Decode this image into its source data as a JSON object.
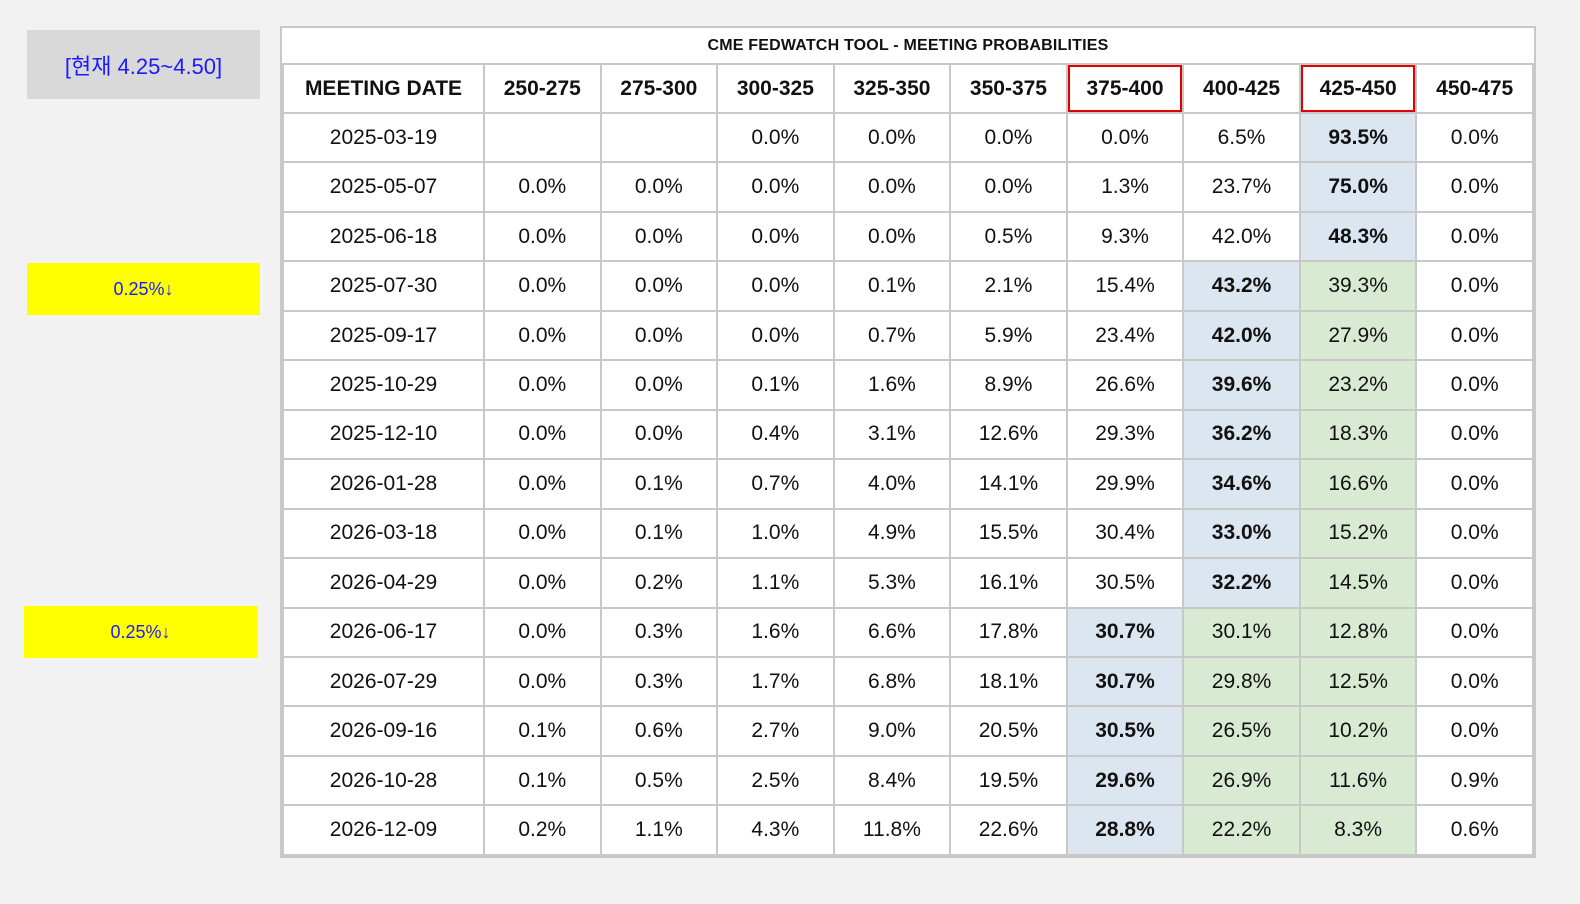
{
  "side": {
    "current_label": "[현재 4.25~4.50]",
    "note_1": "0.25%↓",
    "note_2": "0.25%↓"
  },
  "table": {
    "title": "CME FEDWATCH TOOL - MEETING PROBABILITIES",
    "headers": [
      "MEETING DATE",
      "250-275",
      "275-300",
      "300-325",
      "325-350",
      "350-375",
      "375-400",
      "400-425",
      "425-450",
      "450-475"
    ],
    "outlined_headers": [
      "375-400",
      "425-450"
    ],
    "rows": [
      {
        "date": "2025-03-19",
        "values": [
          "",
          "",
          "0.0%",
          "0.0%",
          "0.0%",
          "0.0%",
          "6.5%",
          "93.5%",
          "0.0%"
        ],
        "highlight_blue": 7,
        "highlight_green": []
      },
      {
        "date": "2025-05-07",
        "values": [
          "0.0%",
          "0.0%",
          "0.0%",
          "0.0%",
          "0.0%",
          "1.3%",
          "23.7%",
          "75.0%",
          "0.0%"
        ],
        "highlight_blue": 7,
        "highlight_green": []
      },
      {
        "date": "2025-06-18",
        "values": [
          "0.0%",
          "0.0%",
          "0.0%",
          "0.0%",
          "0.5%",
          "9.3%",
          "42.0%",
          "48.3%",
          "0.0%"
        ],
        "highlight_blue": 7,
        "highlight_green": []
      },
      {
        "date": "2025-07-30",
        "values": [
          "0.0%",
          "0.0%",
          "0.0%",
          "0.1%",
          "2.1%",
          "15.4%",
          "43.2%",
          "39.3%",
          "0.0%"
        ],
        "highlight_blue": 6,
        "highlight_green": [
          7
        ]
      },
      {
        "date": "2025-09-17",
        "values": [
          "0.0%",
          "0.0%",
          "0.0%",
          "0.7%",
          "5.9%",
          "23.4%",
          "42.0%",
          "27.9%",
          "0.0%"
        ],
        "highlight_blue": 6,
        "highlight_green": [
          7
        ]
      },
      {
        "date": "2025-10-29",
        "values": [
          "0.0%",
          "0.0%",
          "0.1%",
          "1.6%",
          "8.9%",
          "26.6%",
          "39.6%",
          "23.2%",
          "0.0%"
        ],
        "highlight_blue": 6,
        "highlight_green": [
          7
        ]
      },
      {
        "date": "2025-12-10",
        "values": [
          "0.0%",
          "0.0%",
          "0.4%",
          "3.1%",
          "12.6%",
          "29.3%",
          "36.2%",
          "18.3%",
          "0.0%"
        ],
        "highlight_blue": 6,
        "highlight_green": [
          7
        ]
      },
      {
        "date": "2026-01-28",
        "values": [
          "0.0%",
          "0.1%",
          "0.7%",
          "4.0%",
          "14.1%",
          "29.9%",
          "34.6%",
          "16.6%",
          "0.0%"
        ],
        "highlight_blue": 6,
        "highlight_green": [
          7
        ]
      },
      {
        "date": "2026-03-18",
        "values": [
          "0.0%",
          "0.1%",
          "1.0%",
          "4.9%",
          "15.5%",
          "30.4%",
          "33.0%",
          "15.2%",
          "0.0%"
        ],
        "highlight_blue": 6,
        "highlight_green": [
          7
        ]
      },
      {
        "date": "2026-04-29",
        "values": [
          "0.0%",
          "0.2%",
          "1.1%",
          "5.3%",
          "16.1%",
          "30.5%",
          "32.2%",
          "14.5%",
          "0.0%"
        ],
        "highlight_blue": 6,
        "highlight_green": [
          7
        ]
      },
      {
        "date": "2026-06-17",
        "values": [
          "0.0%",
          "0.3%",
          "1.6%",
          "6.6%",
          "17.8%",
          "30.7%",
          "30.1%",
          "12.8%",
          "0.0%"
        ],
        "highlight_blue": 5,
        "highlight_green": [
          6,
          7
        ]
      },
      {
        "date": "2026-07-29",
        "values": [
          "0.0%",
          "0.3%",
          "1.7%",
          "6.8%",
          "18.1%",
          "30.7%",
          "29.8%",
          "12.5%",
          "0.0%"
        ],
        "highlight_blue": 5,
        "highlight_green": [
          6,
          7
        ]
      },
      {
        "date": "2026-09-16",
        "values": [
          "0.1%",
          "0.6%",
          "2.7%",
          "9.0%",
          "20.5%",
          "30.5%",
          "26.5%",
          "10.2%",
          "0.0%"
        ],
        "highlight_blue": 5,
        "highlight_green": [
          6,
          7
        ]
      },
      {
        "date": "2026-10-28",
        "values": [
          "0.1%",
          "0.5%",
          "2.5%",
          "8.4%",
          "19.5%",
          "29.6%",
          "26.9%",
          "11.6%",
          "0.9%"
        ],
        "highlight_blue": 5,
        "highlight_green": [
          6,
          7
        ]
      },
      {
        "date": "2026-12-09",
        "values": [
          "0.2%",
          "1.1%",
          "4.3%",
          "11.8%",
          "22.6%",
          "28.8%",
          "22.2%",
          "8.3%",
          "0.6%"
        ],
        "highlight_blue": 5,
        "highlight_green": [
          6,
          7
        ]
      }
    ]
  },
  "colors": {
    "blue_highlight": "#dce6f1",
    "green_highlight": "#d9ead3",
    "yellow_note": "#ffff00",
    "outline_red": "#e00000",
    "label_text": "#1a1aff"
  }
}
